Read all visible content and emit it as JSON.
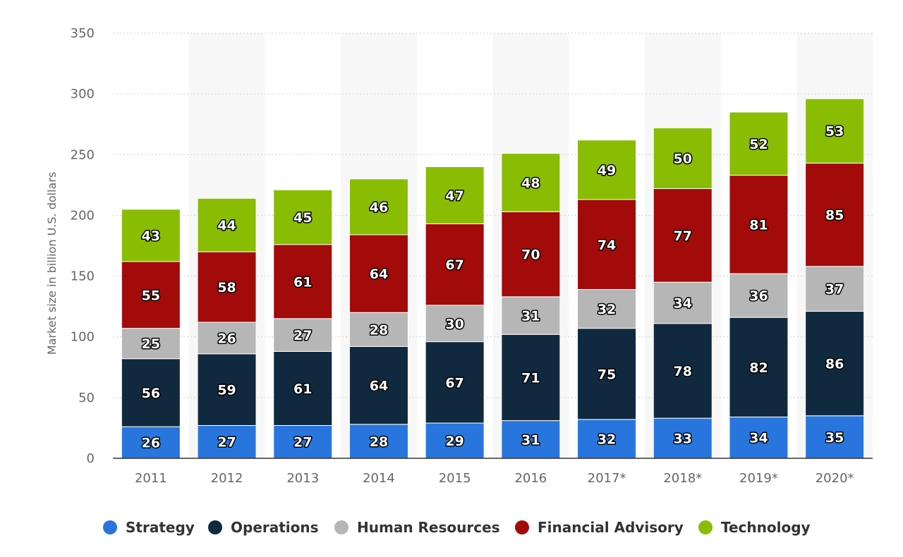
{
  "chart_data": {
    "type": "bar",
    "stacked": true,
    "categories": [
      "2011",
      "2012",
      "2013",
      "2014",
      "2015",
      "2016",
      "2017*",
      "2018*",
      "2019*",
      "2020*"
    ],
    "series": [
      {
        "name": "Strategy",
        "color": "#2876dd",
        "values": [
          26,
          27,
          27,
          28,
          29,
          31,
          32,
          33,
          34,
          35
        ]
      },
      {
        "name": "Operations",
        "color": "#11293f",
        "values": [
          56,
          59,
          61,
          64,
          67,
          71,
          75,
          78,
          82,
          86
        ]
      },
      {
        "name": "Human Resources",
        "color": "#b6b6b6",
        "values": [
          25,
          26,
          27,
          28,
          30,
          31,
          32,
          34,
          36,
          37
        ]
      },
      {
        "name": "Financial Advisory",
        "color": "#a30a0a",
        "values": [
          55,
          58,
          61,
          64,
          67,
          70,
          74,
          77,
          81,
          85
        ]
      },
      {
        "name": "Technology",
        "color": "#89bd03",
        "values": [
          43,
          44,
          45,
          46,
          47,
          48,
          49,
          50,
          52,
          53
        ]
      }
    ],
    "ylabel": "Market size in billion U.S. dollars",
    "ylim": [
      0,
      350
    ],
    "yticks": [
      0,
      50,
      100,
      150,
      200,
      250,
      300,
      350
    ],
    "grid": true,
    "alternating_column_bands": true,
    "legend_position": "bottom"
  }
}
